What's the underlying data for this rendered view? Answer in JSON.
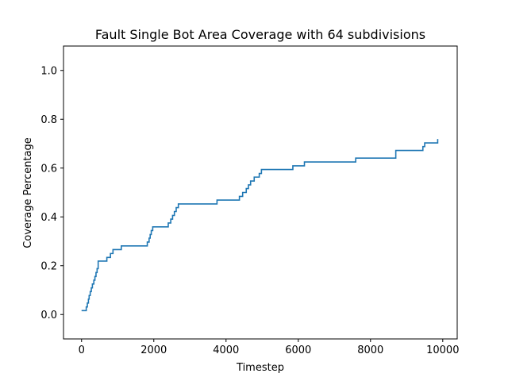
{
  "chart_data": {
    "type": "line",
    "title": "Fault Single Bot Area Coverage with 64 subdivisions",
    "xlabel": "Timestep",
    "ylabel": "Coverage Percentage",
    "xlim": [
      -500,
      10400
    ],
    "ylim": [
      -0.1,
      1.1
    ],
    "xticks": [
      0,
      2000,
      4000,
      6000,
      8000,
      10000
    ],
    "xtick_labels": [
      "0",
      "2000",
      "4000",
      "6000",
      "8000",
      "10000"
    ],
    "yticks": [
      0.0,
      0.2,
      0.4,
      0.6,
      0.8,
      1.0
    ],
    "ytick_labels": [
      "0.0",
      "0.2",
      "0.4",
      "0.6",
      "0.8",
      "1.0"
    ],
    "grid": false,
    "step": true,
    "colors": {
      "series": "#1f77b4"
    },
    "series": [
      {
        "x": [
          0,
          130,
          160,
          190,
          210,
          240,
          270,
          300,
          340,
          370,
          400,
          430,
          460,
          700,
          800,
          870,
          1100,
          1820,
          1870,
          1900,
          1930,
          1970,
          2000,
          2400,
          2470,
          2520,
          2570,
          2620,
          2680,
          2720,
          3750,
          4370,
          4460,
          4560,
          4620,
          4680,
          4720,
          4780,
          4920,
          4980,
          5060,
          5850,
          6170,
          7590,
          8700,
          9450,
          9500,
          9860
        ],
        "y": [
          0.016,
          0.031,
          0.047,
          0.063,
          0.078,
          0.094,
          0.109,
          0.125,
          0.141,
          0.156,
          0.172,
          0.188,
          0.219,
          0.234,
          0.25,
          0.266,
          0.281,
          0.297,
          0.313,
          0.328,
          0.344,
          0.359,
          0.359,
          0.375,
          0.391,
          0.406,
          0.422,
          0.438,
          0.453,
          0.453,
          0.469,
          0.484,
          0.5,
          0.516,
          0.531,
          0.547,
          0.547,
          0.563,
          0.578,
          0.594,
          0.594,
          0.609,
          0.625,
          0.641,
          0.672,
          0.688,
          0.703,
          0.719
        ]
      }
    ]
  }
}
